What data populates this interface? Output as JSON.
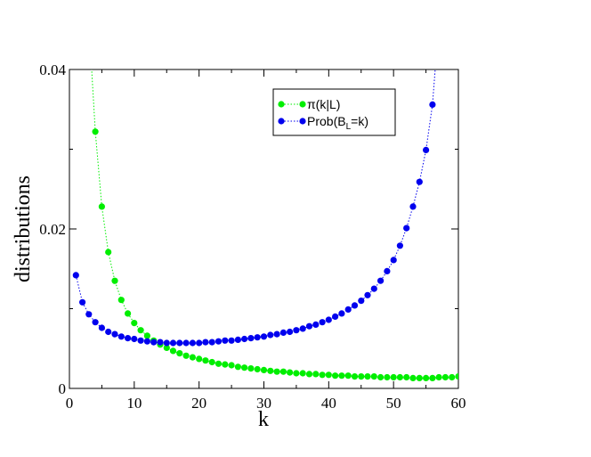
{
  "chart_data": {
    "type": "scatter",
    "xlabel": "k",
    "ylabel": "distributions",
    "xlim": [
      0,
      60
    ],
    "ylim": [
      0,
      0.04
    ],
    "x_ticks": [
      0,
      10,
      20,
      30,
      40,
      50,
      60
    ],
    "x_tick_labels": [
      "0",
      "10",
      "20",
      "30",
      "40",
      "50",
      "60"
    ],
    "y_ticks": [
      0,
      0.02,
      0.04
    ],
    "y_tick_labels": [
      "0",
      "0.02",
      "0.04"
    ],
    "grid": false,
    "legend_position": "top-right",
    "series": [
      {
        "name": "π(k|L)",
        "color": "#00ee00",
        "line_style": "dotted",
        "x": [
          4,
          5,
          6,
          7,
          8,
          9,
          10,
          11,
          12,
          13,
          14,
          15,
          16,
          17,
          18,
          19,
          20,
          21,
          22,
          23,
          24,
          25,
          26,
          27,
          28,
          29,
          30,
          31,
          32,
          33,
          34,
          35,
          36,
          37,
          38,
          39,
          40,
          41,
          42,
          43,
          44,
          45,
          46,
          47,
          48,
          49,
          50,
          51,
          52,
          53,
          54,
          55,
          56,
          57,
          58,
          59,
          60
        ],
        "y": [
          0.0322,
          0.0228,
          0.0171,
          0.0135,
          0.0111,
          0.0094,
          0.0082,
          0.0073,
          0.0066,
          0.006,
          0.0055,
          0.0051,
          0.0047,
          0.0044,
          0.0041,
          0.0039,
          0.0037,
          0.0035,
          0.0033,
          0.0031,
          0.003,
          0.0029,
          0.0027,
          0.0026,
          0.0025,
          0.0024,
          0.0023,
          0.0022,
          0.0021,
          0.0021,
          0.002,
          0.0019,
          0.0019,
          0.0018,
          0.0018,
          0.0017,
          0.0017,
          0.0016,
          0.0016,
          0.0016,
          0.0015,
          0.0015,
          0.0015,
          0.0015,
          0.0014,
          0.0014,
          0.0014,
          0.0014,
          0.0014,
          0.0013,
          0.0013,
          0.0013,
          0.0013,
          0.0014,
          0.0014,
          0.0014,
          0.0015
        ]
      },
      {
        "name": "Prob(B_L=k)",
        "color": "#0000ee",
        "line_style": "dotted",
        "x": [
          1,
          2,
          3,
          4,
          5,
          6,
          7,
          8,
          9,
          10,
          11,
          12,
          13,
          14,
          15,
          16,
          17,
          18,
          19,
          20,
          21,
          22,
          23,
          24,
          25,
          26,
          27,
          28,
          29,
          30,
          31,
          32,
          33,
          34,
          35,
          36,
          37,
          38,
          39,
          40,
          41,
          42,
          43,
          44,
          45,
          46,
          47,
          48,
          49,
          50,
          51,
          52,
          53,
          54,
          55,
          56
        ],
        "y": [
          0.0142,
          0.0108,
          0.0093,
          0.0083,
          0.0076,
          0.0071,
          0.0068,
          0.0065,
          0.0063,
          0.0062,
          0.006,
          0.0059,
          0.0058,
          0.0058,
          0.0057,
          0.0057,
          0.0057,
          0.0057,
          0.0057,
          0.0057,
          0.0058,
          0.0058,
          0.0059,
          0.006,
          0.006,
          0.0061,
          0.0062,
          0.0063,
          0.0064,
          0.0065,
          0.0067,
          0.0068,
          0.007,
          0.0071,
          0.0073,
          0.0075,
          0.0078,
          0.008,
          0.0083,
          0.0086,
          0.009,
          0.0094,
          0.0099,
          0.0104,
          0.011,
          0.0117,
          0.0125,
          0.0135,
          0.0147,
          0.0161,
          0.0179,
          0.0201,
          0.0228,
          0.0259,
          0.0299,
          0.0356
        ]
      }
    ]
  }
}
